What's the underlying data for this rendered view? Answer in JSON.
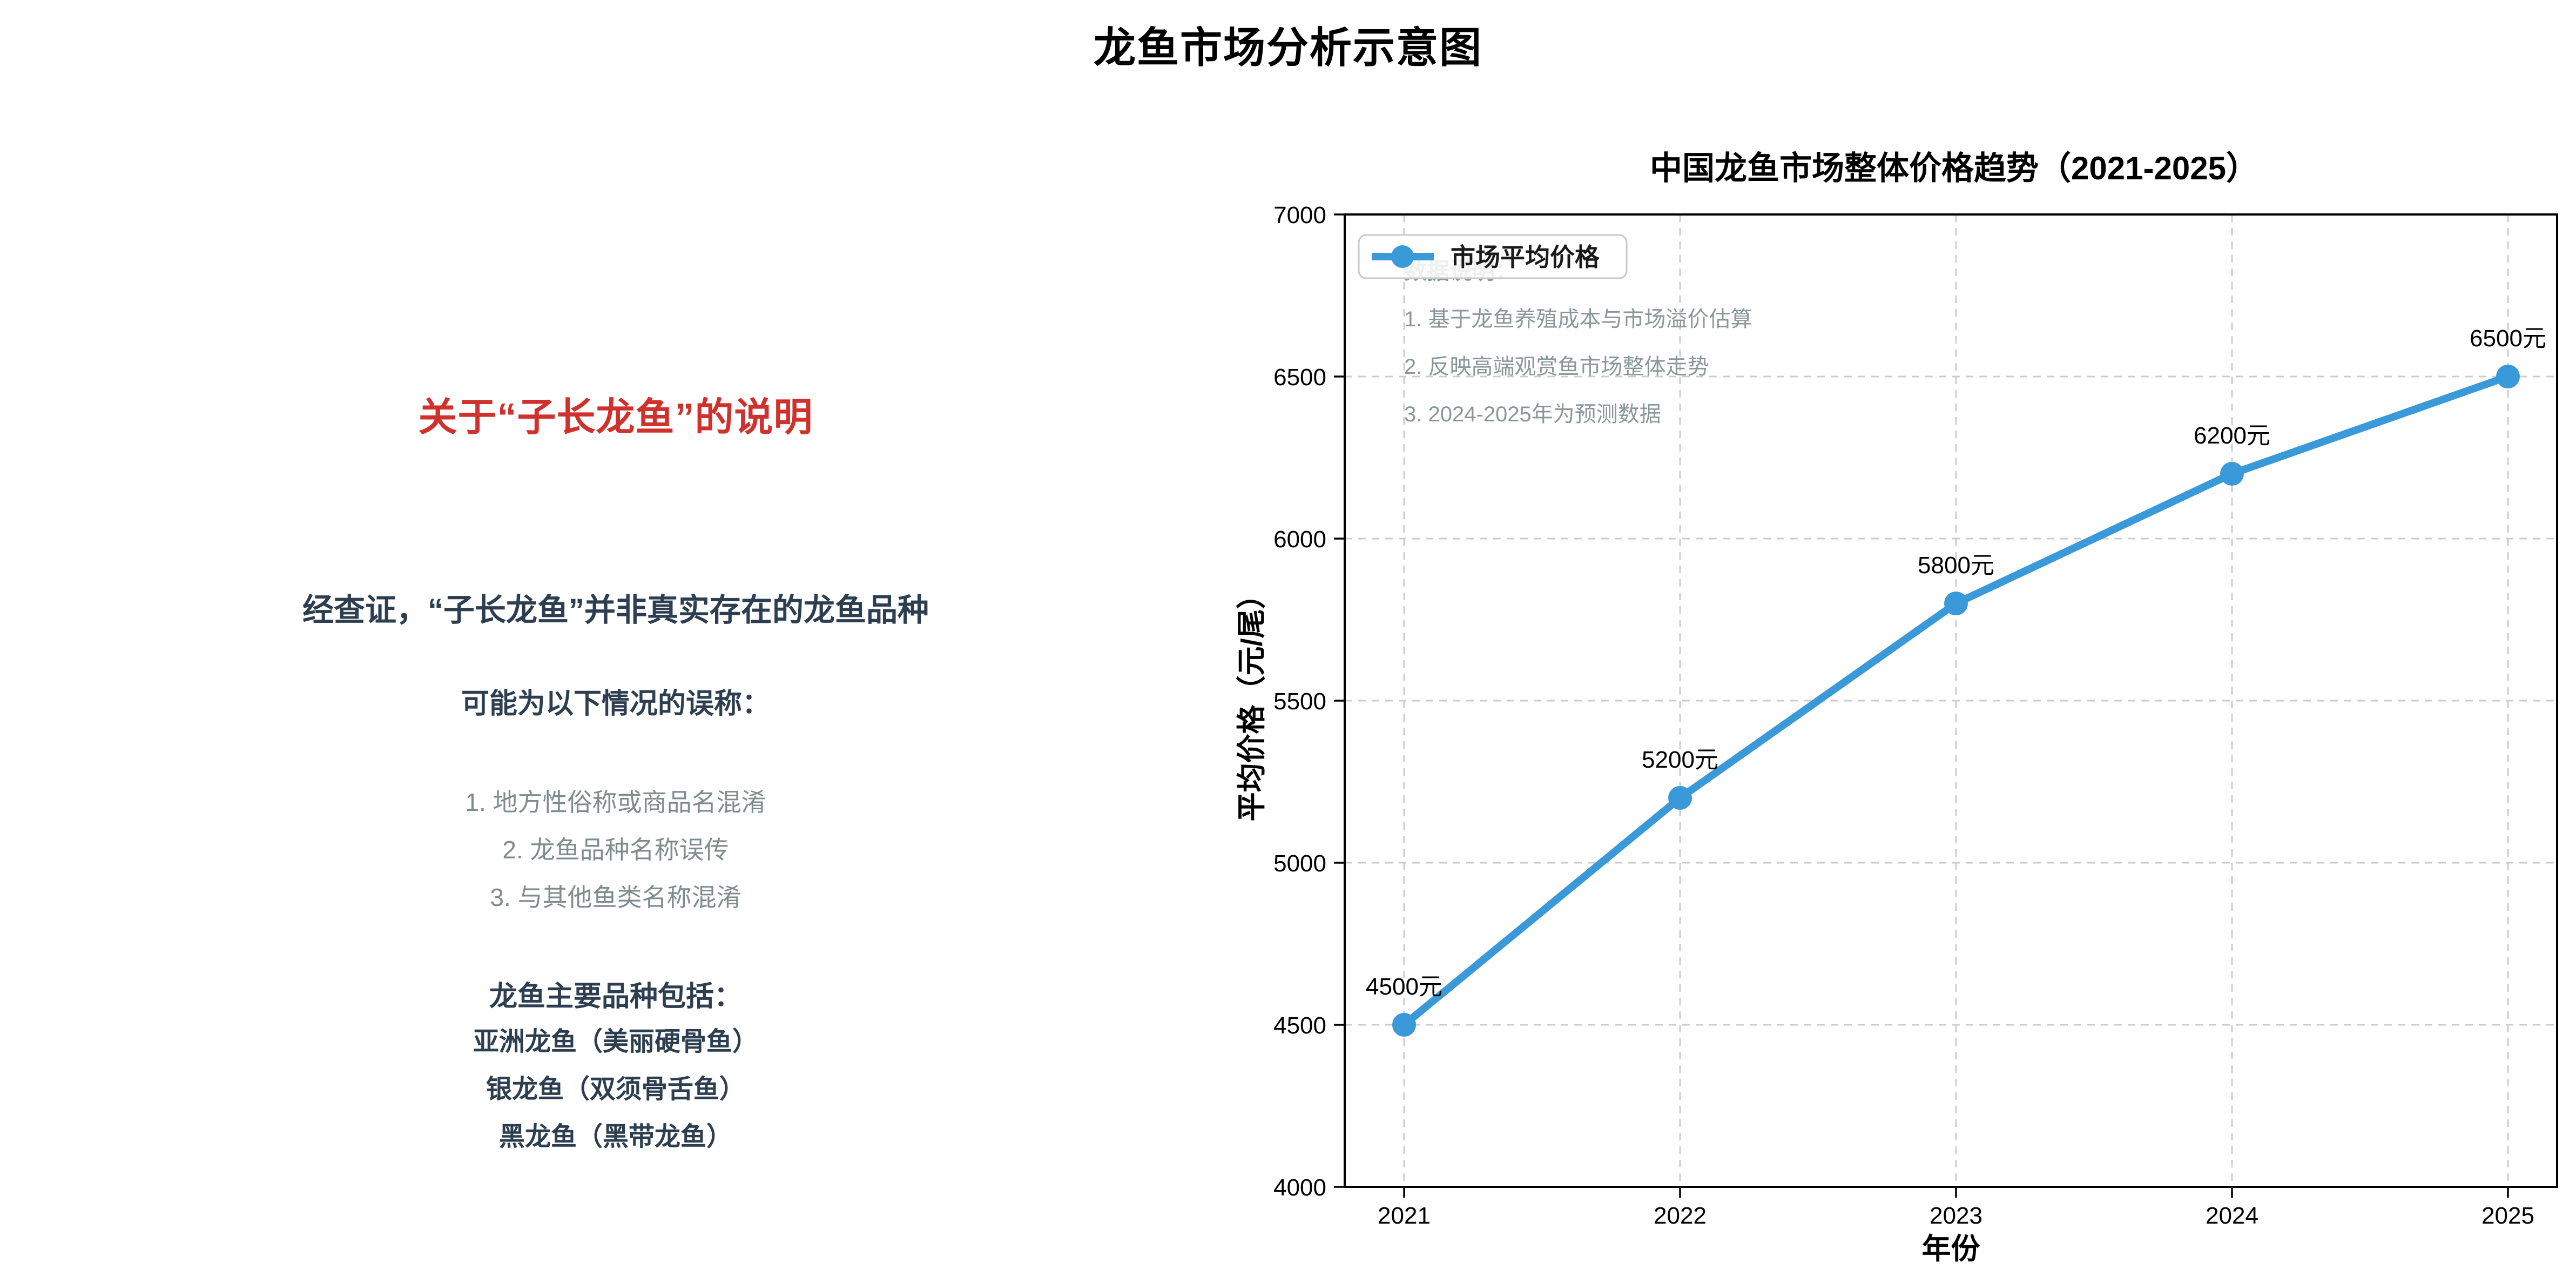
{
  "page_title": "龙鱼市场分析示意图",
  "left_panel": {
    "heading": "关于“子长龙鱼”的说明",
    "intro": "经查证，“子长龙鱼”并非真实存在的龙鱼品种",
    "subheading": "可能为以下情况的误称：",
    "reasons": [
      "1. 地方性俗称或商品名混淆",
      "2. 龙鱼品种名称误传",
      "3. 与其他鱼类名称混淆"
    ],
    "species_header": "龙鱼主要品种包括：",
    "species": [
      "亚洲龙鱼（美丽硬骨鱼）",
      "银龙鱼（双须骨舌鱼）",
      "黑龙鱼（黑带龙鱼）"
    ]
  },
  "chart_data": {
    "type": "line",
    "title": "中国龙鱼市场整体价格趋势（2021-2025）",
    "categories": [
      "2021",
      "2022",
      "2023",
      "2024",
      "2025"
    ],
    "series": [
      {
        "name": "市场平均价格",
        "values": [
          4500,
          5200,
          5800,
          6200,
          6500
        ]
      }
    ],
    "point_labels": [
      "4500元",
      "5200元",
      "5800元",
      "6200元",
      "6500元"
    ],
    "xlabel": "年份",
    "ylabel": "平均价格（元/尾）",
    "ylim": [
      4000,
      7000
    ],
    "ytick_step": 500,
    "grid": "dashed",
    "legend_position": "upper-left",
    "notes_title": "数据说明：",
    "notes": [
      "1. 基于龙鱼养殖成本与市场溢价估算",
      "2. 反映高端观赏鱼市场整体走势",
      "3. 2024-2025年为预测数据"
    ],
    "colors": {
      "line": "#3a99d8",
      "marker": "#3a99d8",
      "grid": "#cccccc",
      "axis": "#000000",
      "notes_text": "#8a979a",
      "tick_text": "#000000",
      "heading_red": "#d0312d",
      "body_slate": "#2c3e50",
      "list_gray": "#7f8c8d"
    }
  }
}
